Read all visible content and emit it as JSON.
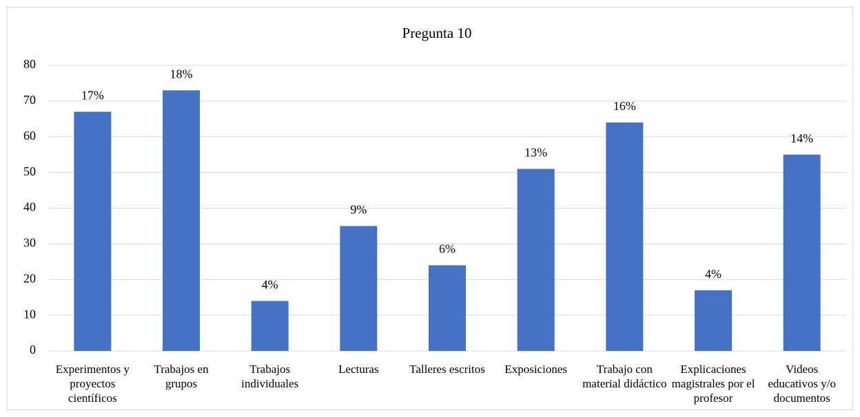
{
  "chart_data": {
    "type": "bar",
    "title": "Pregunta 10",
    "categories": [
      "Experimentos y proyectos científicos",
      "Trabajos en grupos",
      "Trabajos individuales",
      "Lecturas",
      "Talleres escritos",
      "Exposiciones",
      "Trabajo con material didáctico",
      "Explicaciones magistrales por el profesor",
      "Videos educativos y/o documentos"
    ],
    "values": [
      67,
      73,
      14,
      35,
      24,
      51,
      64,
      17,
      55
    ],
    "value_labels": [
      "17%",
      "18%",
      "4%",
      "9%",
      "6%",
      "13%",
      "16%",
      "4%",
      "14%"
    ],
    "color": "#4472c4",
    "ylim": [
      0,
      80
    ],
    "yticks": [
      0,
      10,
      20,
      30,
      40,
      50,
      60,
      70,
      80
    ],
    "grid": true
  }
}
